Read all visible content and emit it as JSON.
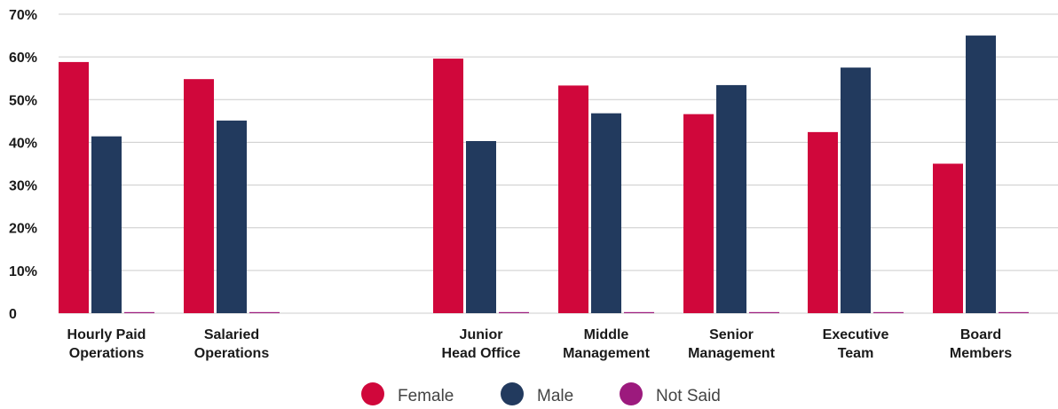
{
  "chart_data": {
    "type": "bar",
    "categories": [
      [
        "Hourly Paid",
        "Operations"
      ],
      [
        "Salaried",
        "Operations"
      ],
      [
        "",
        ""
      ],
      [
        "Junior",
        "Head Office"
      ],
      [
        "Middle",
        "Management"
      ],
      [
        "Senior",
        "Management"
      ],
      [
        "Executive",
        "Team"
      ],
      [
        "Board",
        "Members"
      ]
    ],
    "series": [
      {
        "name": "Female",
        "color": "#d0073b",
        "values": [
          58.8,
          54.8,
          null,
          59.6,
          53.3,
          46.6,
          42.4,
          35.0
        ]
      },
      {
        "name": "Male",
        "color": "#223a5e",
        "values": [
          41.4,
          45.1,
          null,
          40.3,
          46.8,
          53.4,
          57.5,
          65.0
        ]
      },
      {
        "name": "Not Said",
        "color": "#9c1a7d",
        "values": [
          0.2,
          0.1,
          null,
          0.1,
          0.1,
          0.1,
          0.1,
          0.1
        ]
      }
    ],
    "yticks": [
      "0",
      "10%",
      "20%",
      "30%",
      "40%",
      "50%",
      "60%",
      "70%"
    ],
    "ylim": [
      0,
      70
    ],
    "grid": true,
    "legend_position": "bottom"
  }
}
